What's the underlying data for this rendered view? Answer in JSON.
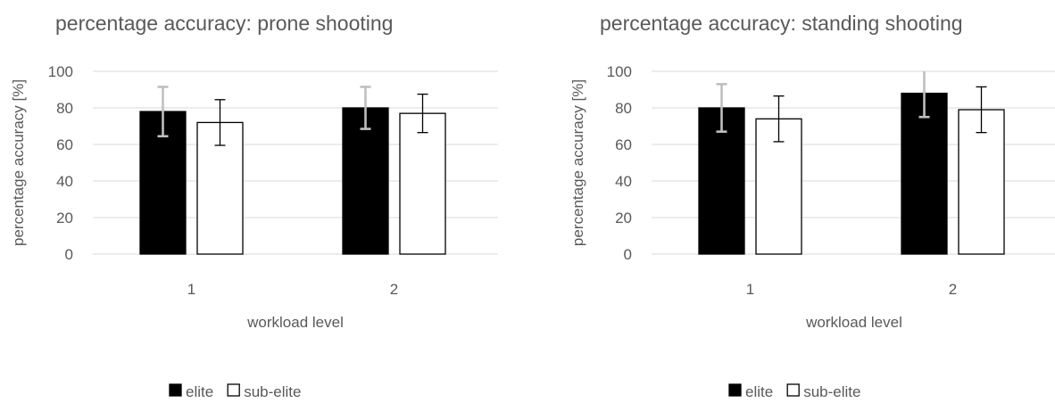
{
  "chart_data": [
    {
      "type": "bar",
      "title": "percentage accuracy: prone shooting",
      "xlabel": "workload level",
      "ylabel": "percentage accuracy [%]",
      "categories": [
        "1",
        "2"
      ],
      "ylim": [
        0,
        100
      ],
      "yticks": [
        "0",
        "20",
        "40",
        "60",
        "80",
        "100"
      ],
      "grid": true,
      "legend_position": "bottom",
      "series": [
        {
          "name": "elite",
          "values": [
            78,
            80
          ],
          "error": [
            13.5,
            11.5
          ],
          "fill": "#000000",
          "stroke": "#000000",
          "error_color": "#bfbfbf"
        },
        {
          "name": "sub-elite",
          "values": [
            72,
            77
          ],
          "error": [
            12.5,
            10.5
          ],
          "fill": "#ffffff",
          "stroke": "#000000",
          "error_color": "#000000"
        }
      ]
    },
    {
      "type": "bar",
      "title": "percentage accuracy: standing shooting",
      "xlabel": "workload level",
      "ylabel": "percentage accuracy [%]",
      "categories": [
        "1",
        "2"
      ],
      "ylim": [
        0,
        100
      ],
      "yticks": [
        "0",
        "20",
        "40",
        "60",
        "80",
        "100"
      ],
      "grid": true,
      "legend_position": "bottom",
      "series": [
        {
          "name": "elite",
          "values": [
            80,
            88
          ],
          "error": [
            13,
            13
          ],
          "fill": "#000000",
          "stroke": "#000000",
          "error_color": "#bfbfbf"
        },
        {
          "name": "sub-elite",
          "values": [
            74,
            79
          ],
          "error": [
            12.5,
            12.5
          ],
          "fill": "#ffffff",
          "stroke": "#000000",
          "error_color": "#000000"
        }
      ]
    }
  ]
}
